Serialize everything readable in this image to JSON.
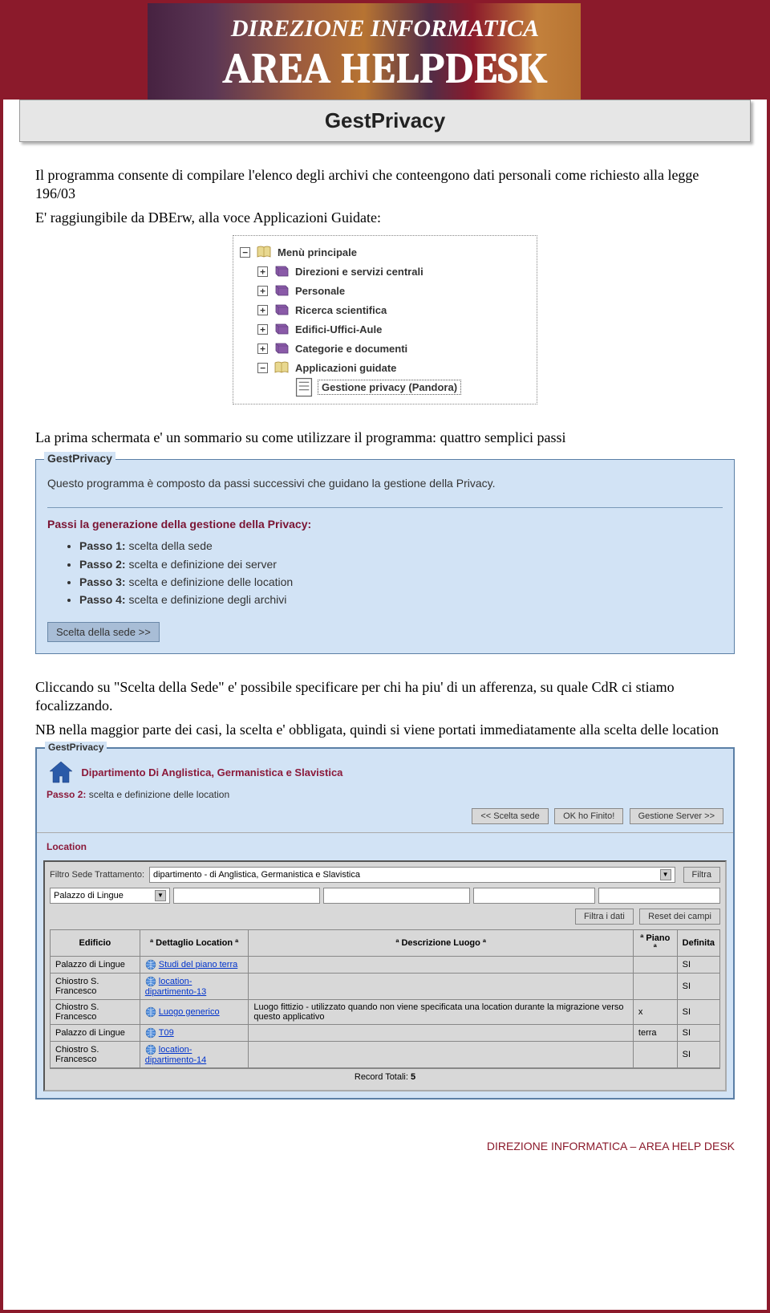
{
  "banner": {
    "line1": "DIREZIONE INFORMATICA",
    "line2": "AREA HELPDESK"
  },
  "title_bar": "GestPrivacy",
  "intro": {
    "p1": "Il programma consente di compilare l'elenco degli archivi che conteengono dati personali come richiesto alla legge 196/03",
    "p2": "E' raggiungibile da DBErw, alla voce Applicazioni Guidate:"
  },
  "tree": [
    {
      "level": 0,
      "expander": "−",
      "icon": "book-open",
      "label": "Menù principale"
    },
    {
      "level": 1,
      "expander": "+",
      "icon": "book-purple",
      "label": "Direzioni e servizi centrali"
    },
    {
      "level": 1,
      "expander": "+",
      "icon": "book-purple",
      "label": "Personale"
    },
    {
      "level": 1,
      "expander": "+",
      "icon": "book-purple",
      "label": "Ricerca scientifica"
    },
    {
      "level": 1,
      "expander": "+",
      "icon": "book-purple",
      "label": "Edifici-Uffici-Aule"
    },
    {
      "level": 1,
      "expander": "+",
      "icon": "book-purple",
      "label": "Categorie e documenti"
    },
    {
      "level": 1,
      "expander": "−",
      "icon": "book-open",
      "label": "Applicazioni guidate"
    },
    {
      "level": 2,
      "expander": "",
      "icon": "doc",
      "label": "Gestione privacy (Pandora)",
      "leaf": true
    }
  ],
  "mid_text": "La prima schermata e' un sommario su come utilizzare il programma: quattro semplici passi",
  "gp_panel": {
    "legend": "GestPrivacy",
    "intro": "Questo programma è composto da passi successivi che guidano la gestione della Privacy.",
    "steps_title": "Passi la generazione della gestione della Privacy:",
    "steps": [
      {
        "bold": "Passo 1:",
        "text": " scelta della sede"
      },
      {
        "bold": "Passo 2:",
        "text": " scelta e definizione dei server"
      },
      {
        "bold": "Passo 3:",
        "text": " scelta e definizione delle location"
      },
      {
        "bold": "Passo 4:",
        "text": " scelta e definizione degli archivi"
      }
    ],
    "btn": "Scelta della sede >>"
  },
  "para2": {
    "p1": "Cliccando su \"Scelta della Sede\" e' possibile specificare per chi ha piu' di un afferenza, su quale CdR ci stiamo focalizzando.",
    "p2": "NB nella maggior parte dei casi, la scelta e' obbligata, quindi si viene portati immediatamente alla scelta delle location"
  },
  "gp2": {
    "legend": "GestPrivacy",
    "dept": "Dipartimento Di Anglistica, Germanistica e Slavistica",
    "passo_bold": "Passo 2:",
    "passo_text": " scelta e definizione delle location",
    "btns": {
      "back": "<< Scelta sede",
      "ok": "OK ho Finito!",
      "next": "Gestione Server >>"
    },
    "location_label": "Location",
    "filter": {
      "label": "Filtro Sede Trattamento:",
      "select_value": "dipartimento - di Anglistica, Germanistica e Slavistica",
      "filtra_btn": "Filtra",
      "edificio_sel": "Palazzo di Lingue",
      "filtra_dati": "Filtra i dati",
      "reset": "Reset dei campi"
    },
    "table": {
      "headers": [
        "Edificio",
        "ª Dettaglio Location ª",
        "ª Descrizione Luogo ª",
        "ª Piano ª",
        "Definita"
      ],
      "rows": [
        {
          "edificio": "Palazzo di Lingue",
          "dett": "Studi del piano terra",
          "desc": "",
          "piano": "",
          "def": "SI"
        },
        {
          "edificio": "Chiostro S. Francesco",
          "dett": "location-dipartimento-13",
          "desc": "",
          "piano": "",
          "def": "SI"
        },
        {
          "edificio": "Chiostro S. Francesco",
          "dett": "Luogo generico",
          "desc": "Luogo fittizio - utilizzato quando non viene specificata una location durante la migrazione verso questo applicativo",
          "piano": "x",
          "def": "SI"
        },
        {
          "edificio": "Palazzo di Lingue",
          "dett": "T09",
          "desc": "",
          "piano": "terra",
          "def": "SI"
        },
        {
          "edificio": "Chiostro S. Francesco",
          "dett": "location-dipartimento-14",
          "desc": "",
          "piano": "",
          "def": "SI"
        }
      ],
      "record_label": "Record Totali:",
      "record_count": "5"
    }
  },
  "footer": "DIREZIONE INFORMATICA – AREA HELP DESK"
}
